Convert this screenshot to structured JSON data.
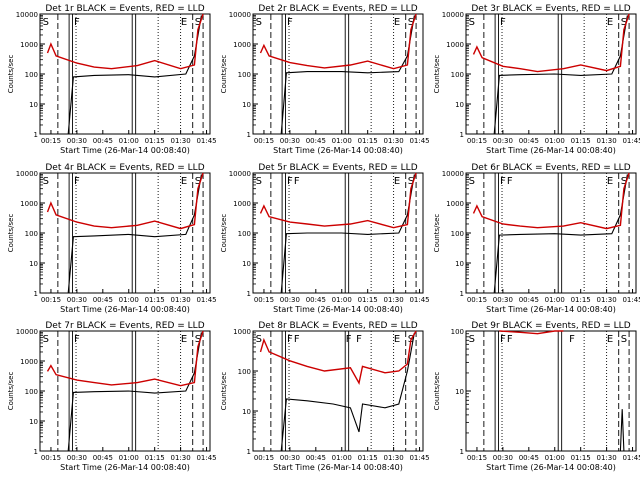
{
  "figure": {
    "background": "#ffffff",
    "colors": {
      "events": "#000000",
      "lld": "#cc0000"
    }
  },
  "chart_data": [
    {
      "type": "line",
      "title": "Det 1r BLACK = Events, RED = LLD",
      "xlabel": "Start Time (26-Mar-14 00:08:40)",
      "ylabel": "Counts/sec",
      "yscale": "log",
      "ylim": [
        1,
        10000
      ],
      "y_ticks": [
        "1",
        "10",
        "100",
        "1000",
        "10000"
      ],
      "x_ticks": [
        "00:15",
        "00:30",
        "00:45",
        "01:00",
        "01:15",
        "01:30",
        "01:45"
      ],
      "markers": [
        "S",
        "F",
        "E",
        "S"
      ],
      "series": [
        {
          "name": "Events",
          "color": "#000000",
          "profile": "normal",
          "points": [
            [
              "00:25",
              1
            ],
            [
              "00:28",
              80
            ],
            [
              "00:40",
              90
            ],
            [
              "01:00",
              95
            ],
            [
              "01:15",
              80
            ],
            [
              "01:33",
              100
            ],
            [
              "01:38",
              400
            ],
            [
              "01:42",
              9000
            ]
          ]
        },
        {
          "name": "LLD",
          "color": "#cc0000",
          "points": [
            [
              "00:13",
              500
            ],
            [
              "00:15",
              1000
            ],
            [
              "00:18",
              400
            ],
            [
              "00:30",
              230
            ],
            [
              "00:40",
              170
            ],
            [
              "00:50",
              150
            ],
            [
              "01:05",
              190
            ],
            [
              "01:15",
              280
            ],
            [
              "01:30",
              150
            ],
            [
              "01:38",
              200
            ],
            [
              "01:40",
              3000
            ],
            [
              "01:43",
              10000
            ]
          ]
        }
      ]
    },
    {
      "type": "line",
      "title": "Det 2r BLACK = Events, RED = LLD",
      "xlabel": "Start Time (26-Mar-14 00:08:40)",
      "ylabel": "Counts/sec",
      "yscale": "log",
      "ylim": [
        1,
        10000
      ],
      "y_ticks": [
        "1",
        "10",
        "100",
        "1000",
        "10000"
      ],
      "x_ticks": [
        "00:15",
        "00:30",
        "00:45",
        "01:00",
        "01:15",
        "01:30",
        "01:45"
      ],
      "markers": [
        "S",
        "F",
        "E",
        "S"
      ],
      "series": [
        {
          "name": "Events",
          "color": "#000000",
          "points": [
            [
              "00:25",
              1
            ],
            [
              "00:28",
              110
            ],
            [
              "00:40",
              120
            ],
            [
              "01:00",
              120
            ],
            [
              "01:15",
              110
            ],
            [
              "01:33",
              120
            ],
            [
              "01:38",
              400
            ],
            [
              "01:42",
              9000
            ]
          ]
        },
        {
          "name": "LLD",
          "color": "#cc0000",
          "points": [
            [
              "00:13",
              500
            ],
            [
              "00:15",
              900
            ],
            [
              "00:18",
              400
            ],
            [
              "00:30",
              240
            ],
            [
              "00:40",
              190
            ],
            [
              "00:50",
              160
            ],
            [
              "01:05",
              200
            ],
            [
              "01:15",
              270
            ],
            [
              "01:30",
              150
            ],
            [
              "01:38",
              200
            ],
            [
              "01:40",
              3000
            ],
            [
              "01:43",
              10000
            ]
          ]
        }
      ]
    },
    {
      "type": "line",
      "title": "Det 3r BLACK = Events, RED = LLD",
      "xlabel": "Start Time (26-Mar-14 00:08:40)",
      "ylabel": "Counts/sec",
      "yscale": "log",
      "ylim": [
        1,
        10000
      ],
      "y_ticks": [
        "1",
        "10",
        "100",
        "1000",
        "10000"
      ],
      "x_ticks": [
        "00:15",
        "00:30",
        "00:45",
        "01:00",
        "01:15",
        "01:30",
        "01:45"
      ],
      "markers": [
        "S",
        "F",
        "E",
        "S"
      ],
      "series": [
        {
          "name": "Events",
          "color": "#000000",
          "points": [
            [
              "00:25",
              1
            ],
            [
              "00:28",
              90
            ],
            [
              "00:40",
              95
            ],
            [
              "01:00",
              100
            ],
            [
              "01:15",
              90
            ],
            [
              "01:33",
              100
            ],
            [
              "01:38",
              400
            ],
            [
              "01:42",
              9000
            ]
          ]
        },
        {
          "name": "LLD",
          "color": "#cc0000",
          "points": [
            [
              "00:13",
              450
            ],
            [
              "00:15",
              800
            ],
            [
              "00:18",
              350
            ],
            [
              "00:30",
              180
            ],
            [
              "00:40",
              150
            ],
            [
              "00:50",
              120
            ],
            [
              "01:05",
              150
            ],
            [
              "01:15",
              200
            ],
            [
              "01:30",
              130
            ],
            [
              "01:38",
              180
            ],
            [
              "01:40",
              3000
            ],
            [
              "01:43",
              10000
            ]
          ]
        }
      ]
    },
    {
      "type": "line",
      "title": "Det 4r BLACK = Events, RED = LLD",
      "xlabel": "Start Time (26-Mar-14 00:08:40)",
      "ylabel": "Counts/sec",
      "yscale": "log",
      "ylim": [
        1,
        10000
      ],
      "y_ticks": [
        "1",
        "10",
        "100",
        "1000",
        "10000"
      ],
      "x_ticks": [
        "00:15",
        "00:30",
        "00:45",
        "01:00",
        "01:15",
        "01:30",
        "01:45"
      ],
      "markers": [
        "S",
        "F",
        "E",
        "S"
      ],
      "series": [
        {
          "name": "Events",
          "color": "#000000",
          "points": [
            [
              "00:25",
              1
            ],
            [
              "00:28",
              75
            ],
            [
              "00:40",
              80
            ],
            [
              "01:00",
              90
            ],
            [
              "01:15",
              75
            ],
            [
              "01:33",
              90
            ],
            [
              "01:38",
              400
            ],
            [
              "01:42",
              9000
            ]
          ]
        },
        {
          "name": "LLD",
          "color": "#cc0000",
          "points": [
            [
              "00:13",
              500
            ],
            [
              "00:15",
              1000
            ],
            [
              "00:18",
              400
            ],
            [
              "00:30",
              230
            ],
            [
              "00:40",
              170
            ],
            [
              "00:50",
              150
            ],
            [
              "01:05",
              180
            ],
            [
              "01:15",
              250
            ],
            [
              "01:30",
              140
            ],
            [
              "01:38",
              190
            ],
            [
              "01:40",
              3000
            ],
            [
              "01:43",
              10000
            ]
          ]
        }
      ]
    },
    {
      "type": "line",
      "title": "Det 5r BLACK = Events, RED = LLD",
      "xlabel": "Start Time (26-Mar-14 00:08:40)",
      "ylabel": "Counts/sec",
      "yscale": "log",
      "ylim": [
        1,
        10000
      ],
      "y_ticks": [
        "1",
        "10",
        "100",
        "1000",
        "10000"
      ],
      "x_ticks": [
        "00:15",
        "00:30",
        "00:45",
        "01:00",
        "01:15",
        "01:30",
        "01:45"
      ],
      "markers": [
        "S",
        "F",
        "F",
        "E",
        "S"
      ],
      "series": [
        {
          "name": "Events",
          "color": "#000000",
          "points": [
            [
              "00:25",
              1
            ],
            [
              "00:28",
              95
            ],
            [
              "00:40",
              100
            ],
            [
              "01:00",
              100
            ],
            [
              "01:15",
              90
            ],
            [
              "01:33",
              100
            ],
            [
              "01:38",
              400
            ],
            [
              "01:42",
              9000
            ]
          ]
        },
        {
          "name": "LLD",
          "color": "#cc0000",
          "points": [
            [
              "00:13",
              450
            ],
            [
              "00:15",
              800
            ],
            [
              "00:18",
              350
            ],
            [
              "00:30",
              230
            ],
            [
              "00:40",
              200
            ],
            [
              "00:50",
              170
            ],
            [
              "01:05",
              200
            ],
            [
              "01:15",
              260
            ],
            [
              "01:30",
              150
            ],
            [
              "01:38",
              190
            ],
            [
              "01:40",
              3000
            ],
            [
              "01:43",
              10000
            ]
          ]
        }
      ]
    },
    {
      "type": "line",
      "title": "Det 6r BLACK = Events, RED = LLD",
      "xlabel": "Start Time (26-Mar-14 00:08:40)",
      "ylabel": "Counts/sec",
      "yscale": "log",
      "ylim": [
        1,
        10000
      ],
      "y_ticks": [
        "1",
        "10",
        "100",
        "1000",
        "10000"
      ],
      "x_ticks": [
        "00:15",
        "00:30",
        "00:45",
        "01:00",
        "01:15",
        "01:30",
        "01:45"
      ],
      "markers": [
        "S",
        "F",
        "F",
        "E",
        "S"
      ],
      "series": [
        {
          "name": "Events",
          "color": "#000000",
          "points": [
            [
              "00:25",
              1
            ],
            [
              "00:28",
              85
            ],
            [
              "00:40",
              90
            ],
            [
              "01:00",
              95
            ],
            [
              "01:15",
              85
            ],
            [
              "01:33",
              95
            ],
            [
              "01:38",
              400
            ],
            [
              "01:42",
              9000
            ]
          ]
        },
        {
          "name": "LLD",
          "color": "#cc0000",
          "points": [
            [
              "00:13",
              450
            ],
            [
              "00:15",
              800
            ],
            [
              "00:18",
              350
            ],
            [
              "00:30",
              200
            ],
            [
              "00:40",
              170
            ],
            [
              "00:50",
              150
            ],
            [
              "01:05",
              170
            ],
            [
              "01:15",
              220
            ],
            [
              "01:30",
              140
            ],
            [
              "01:38",
              180
            ],
            [
              "01:40",
              3000
            ],
            [
              "01:43",
              10000
            ]
          ]
        }
      ]
    },
    {
      "type": "line",
      "title": "Det 7r BLACK = Events, RED = LLD",
      "xlabel": "Start Time (26-Mar-14 00:08:40)",
      "ylabel": "Counts/sec",
      "yscale": "log",
      "ylim": [
        1,
        10000
      ],
      "y_ticks": [
        "1",
        "10",
        "100",
        "1000",
        "10000"
      ],
      "x_ticks": [
        "00:15",
        "00:30",
        "00:45",
        "01:00",
        "01:15",
        "01:30",
        "01:45"
      ],
      "markers": [
        "S",
        "F",
        "E",
        "S"
      ],
      "series": [
        {
          "name": "Events",
          "color": "#000000",
          "points": [
            [
              "00:25",
              1
            ],
            [
              "00:28",
              90
            ],
            [
              "00:40",
              95
            ],
            [
              "01:00",
              100
            ],
            [
              "01:15",
              85
            ],
            [
              "01:33",
              100
            ],
            [
              "01:38",
              400
            ],
            [
              "01:42",
              9000
            ]
          ]
        },
        {
          "name": "LLD",
          "color": "#cc0000",
          "points": [
            [
              "00:13",
              450
            ],
            [
              "00:15",
              700
            ],
            [
              "00:18",
              350
            ],
            [
              "00:30",
              230
            ],
            [
              "00:40",
              190
            ],
            [
              "00:50",
              160
            ],
            [
              "01:05",
              190
            ],
            [
              "01:15",
              250
            ],
            [
              "01:30",
              150
            ],
            [
              "01:38",
              190
            ],
            [
              "01:40",
              3000
            ],
            [
              "01:43",
              10000
            ]
          ]
        }
      ]
    },
    {
      "type": "line",
      "title": "Det 8r BLACK = Events, RED = LLD",
      "xlabel": "Start Time (26-Mar-14 00:08:40)",
      "ylabel": "Counts/sec",
      "yscale": "log",
      "ylim": [
        1,
        1000
      ],
      "y_ticks": [
        "1",
        "10",
        "100",
        "1000"
      ],
      "x_ticks": [
        "00:15",
        "00:30",
        "00:45",
        "01:00",
        "01:15",
        "01:30",
        "01:45"
      ],
      "markers": [
        "S",
        "F",
        "F",
        "F",
        "F",
        "E",
        "S"
      ],
      "series": [
        {
          "name": "Events",
          "color": "#000000",
          "points": [
            [
              "00:25",
              1
            ],
            [
              "00:28",
              20
            ],
            [
              "00:40",
              18
            ],
            [
              "00:55",
              15
            ],
            [
              "01:05",
              12
            ],
            [
              "01:10",
              3
            ],
            [
              "01:12",
              15
            ],
            [
              "01:25",
              12
            ],
            [
              "01:33",
              15
            ],
            [
              "01:38",
              100
            ],
            [
              "01:42",
              900
            ]
          ]
        },
        {
          "name": "LLD",
          "color": "#cc0000",
          "points": [
            [
              "00:13",
              300
            ],
            [
              "00:15",
              600
            ],
            [
              "00:18",
              300
            ],
            [
              "00:30",
              180
            ],
            [
              "00:40",
              130
            ],
            [
              "00:50",
              100
            ],
            [
              "01:05",
              120
            ],
            [
              "01:10",
              50
            ],
            [
              "01:12",
              130
            ],
            [
              "01:25",
              90
            ],
            [
              "01:33",
              100
            ],
            [
              "01:38",
              150
            ],
            [
              "01:40",
              600
            ],
            [
              "01:43",
              1000
            ]
          ]
        }
      ]
    },
    {
      "type": "line",
      "title": "Det 9r BLACK = Events, RED = LLD",
      "xlabel": "Start Time (26-Mar-14 00:08:40)",
      "ylabel": "Counts/sec",
      "yscale": "log",
      "ylim": [
        1,
        100
      ],
      "y_ticks": [
        "1",
        "10",
        "100"
      ],
      "x_ticks": [
        "00:15",
        "00:30",
        "00:45",
        "01:00",
        "01:15",
        "01:30",
        "01:45"
      ],
      "markers": [
        "S",
        "F",
        "F",
        "F",
        "E",
        "S"
      ],
      "series": [
        {
          "name": "Events",
          "color": "#000000",
          "points": [
            [
              "01:38",
              1
            ],
            [
              "01:39",
              5
            ],
            [
              "01:40",
              1
            ]
          ]
        },
        {
          "name": "LLD",
          "color": "#cc0000",
          "points": [
            [
              "00:28",
              100
            ],
            [
              "00:40",
              95
            ],
            [
              "00:50",
              90
            ],
            [
              "01:00",
              100
            ],
            [
              "01:05",
              100
            ]
          ]
        }
      ]
    }
  ]
}
